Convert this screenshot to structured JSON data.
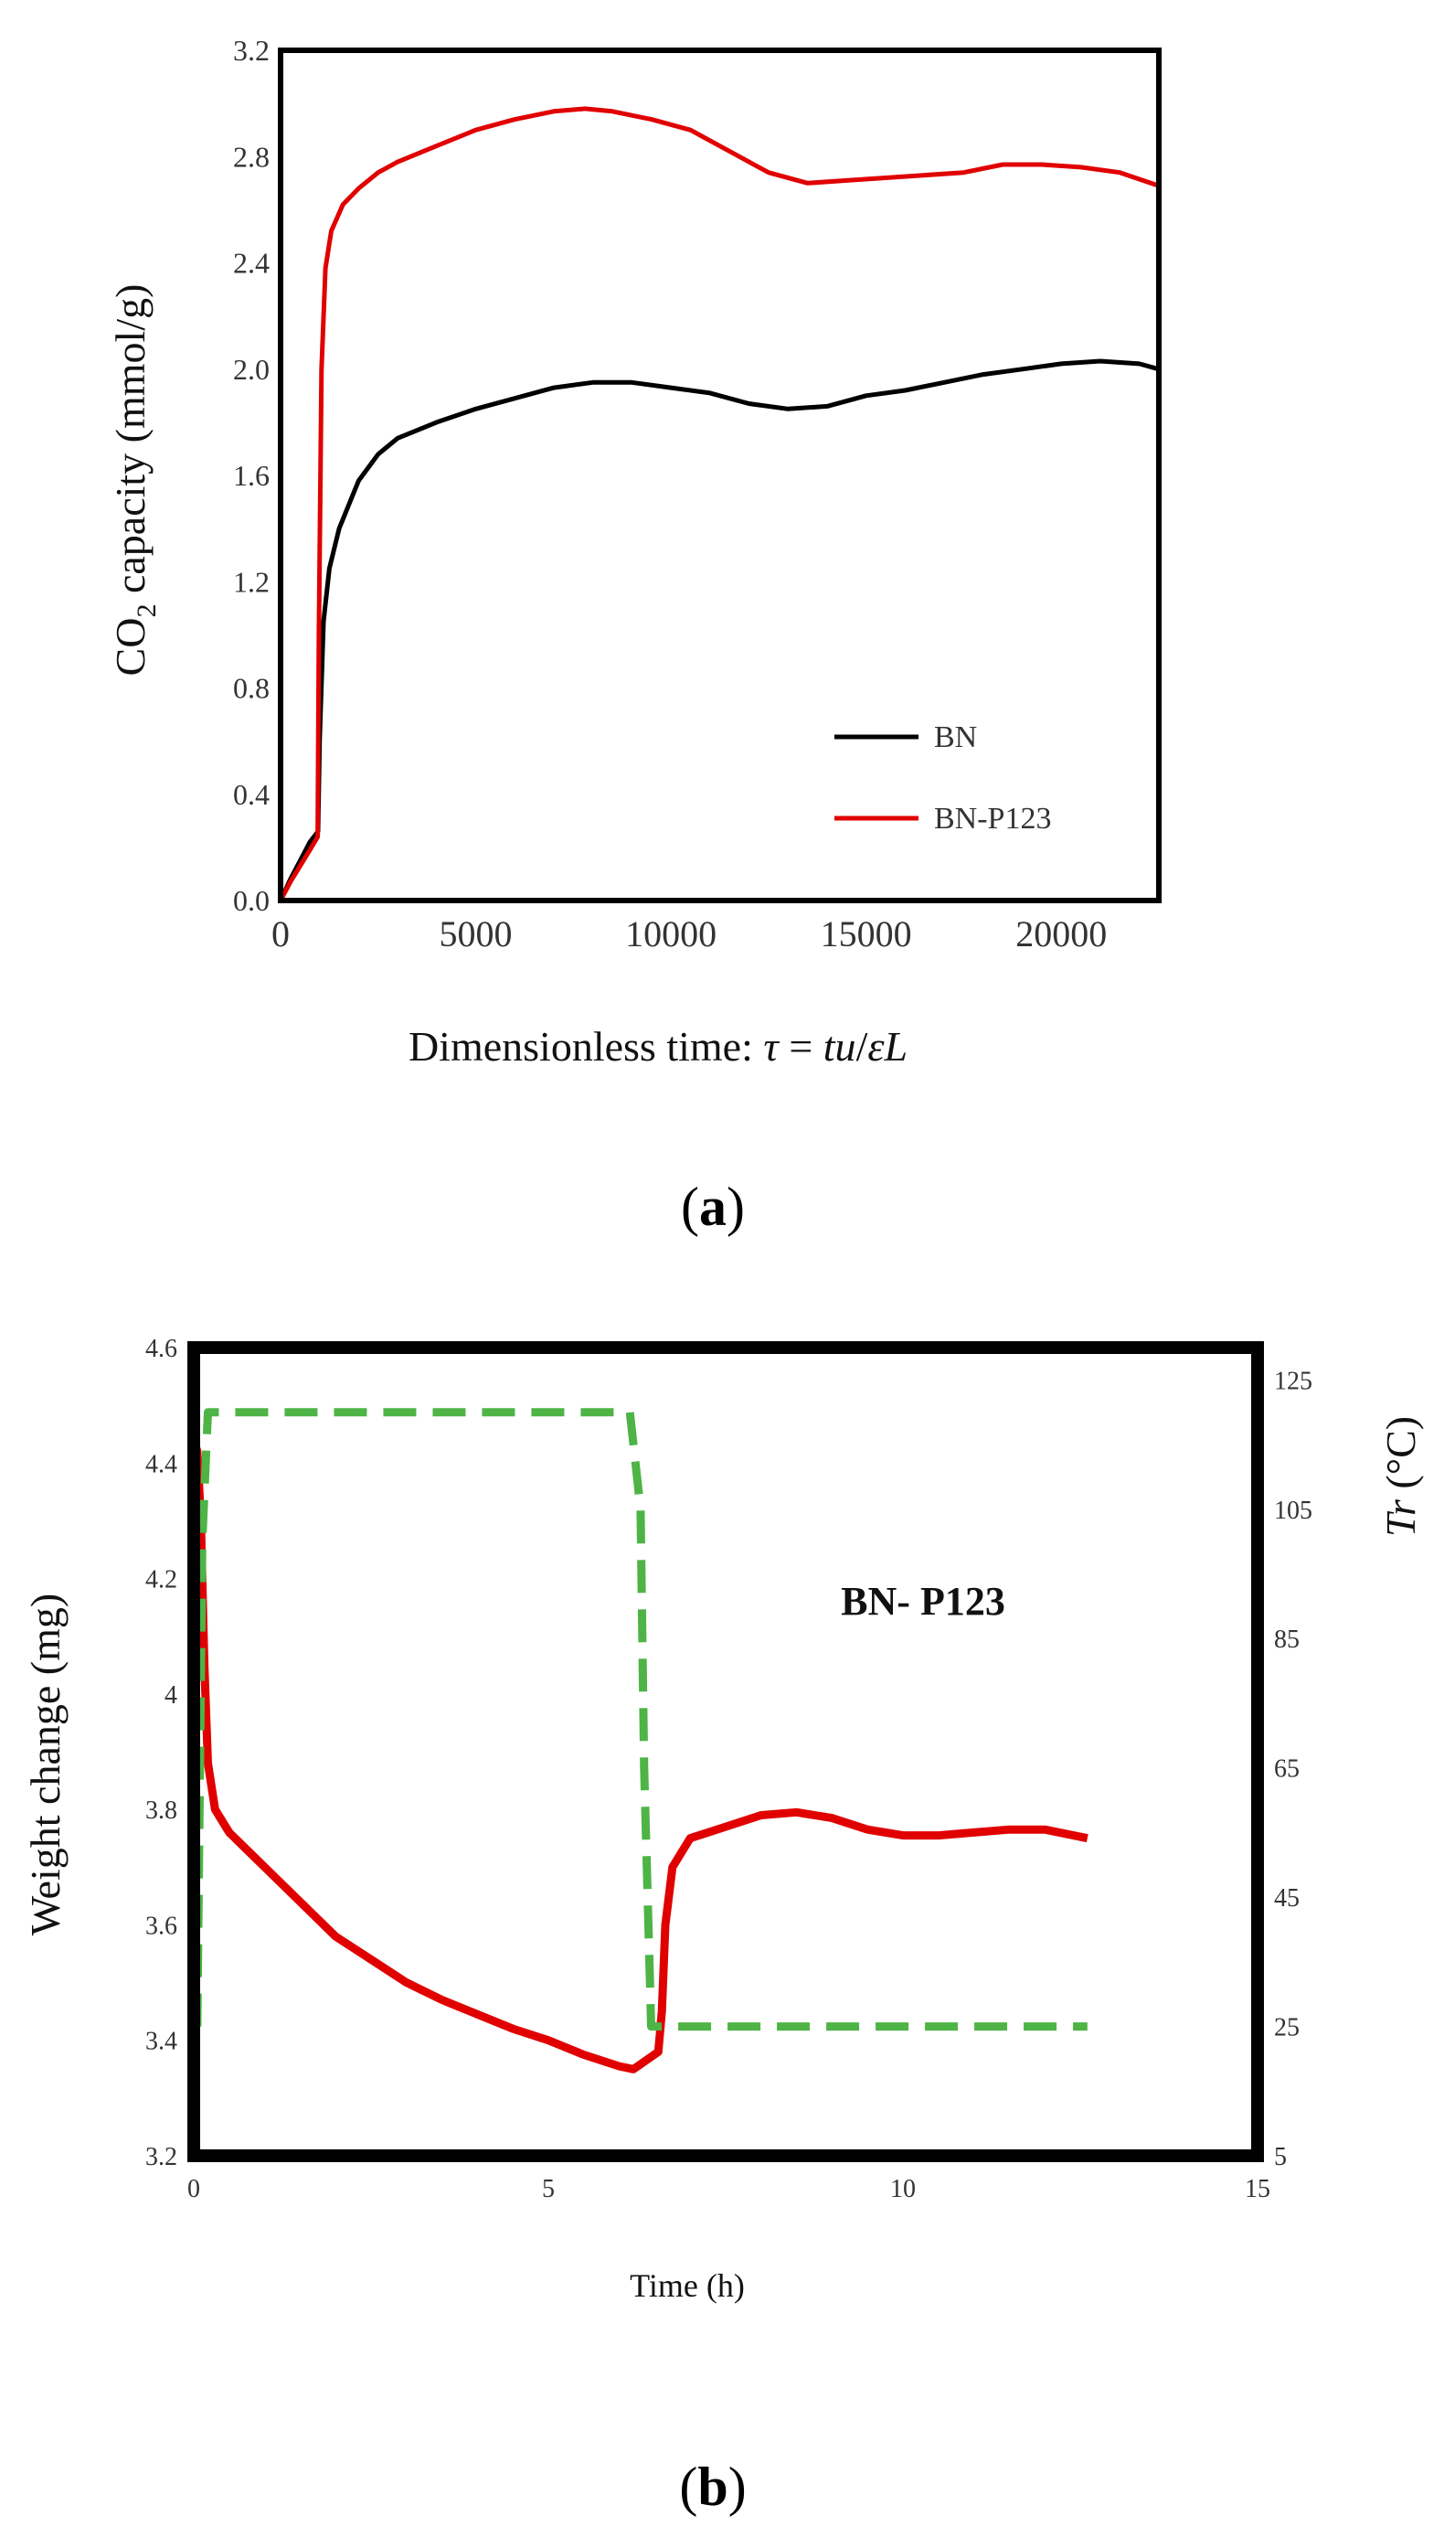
{
  "chart_data": [
    {
      "panel": "a",
      "type": "line",
      "panel_label": {
        "open": "(",
        "letter": "a",
        "close": ")"
      },
      "title": "",
      "xlabel": {
        "main": "Dimensionless time: ",
        "tau": "τ",
        "eq": " = ",
        "tu": "tu",
        "slash": "/",
        "epsL": "εL"
      },
      "ylabel": {
        "pre": "CO",
        "sub": "2",
        "post": " capacity (mmol/g)"
      },
      "xlim": [
        0,
        22500
      ],
      "ylim": [
        0.0,
        3.2
      ],
      "xticks": [
        "0",
        "5000",
        "10000",
        "15000",
        "20000"
      ],
      "yticks": [
        "0.0",
        "0.4",
        "0.8",
        "1.2",
        "1.6",
        "2.0",
        "2.4",
        "2.8",
        "3.2"
      ],
      "legend_position": "bottom-right",
      "series": [
        {
          "name": "BN",
          "color": "#000000",
          "points": [
            [
              0,
              0
            ],
            [
              250,
              0.08
            ],
            [
              500,
              0.15
            ],
            [
              750,
              0.22
            ],
            [
              960,
              0.26
            ],
            [
              1000,
              0.6
            ],
            [
              1100,
              1.05
            ],
            [
              1250,
              1.25
            ],
            [
              1500,
              1.4
            ],
            [
              2000,
              1.58
            ],
            [
              2500,
              1.68
            ],
            [
              3000,
              1.74
            ],
            [
              4000,
              1.8
            ],
            [
              5000,
              1.85
            ],
            [
              6000,
              1.89
            ],
            [
              7000,
              1.93
            ],
            [
              8000,
              1.95
            ],
            [
              9000,
              1.95
            ],
            [
              10000,
              1.93
            ],
            [
              11000,
              1.91
            ],
            [
              12000,
              1.87
            ],
            [
              13000,
              1.85
            ],
            [
              14000,
              1.86
            ],
            [
              15000,
              1.9
            ],
            [
              16000,
              1.92
            ],
            [
              17000,
              1.95
            ],
            [
              18000,
              1.98
            ],
            [
              19000,
              2.0
            ],
            [
              20000,
              2.02
            ],
            [
              21000,
              2.03
            ],
            [
              22000,
              2.02
            ],
            [
              22500,
              2.0
            ]
          ]
        },
        {
          "name": "BN-P123",
          "color": "#e00000",
          "points": [
            [
              0,
              0
            ],
            [
              250,
              0.07
            ],
            [
              500,
              0.13
            ],
            [
              750,
              0.19
            ],
            [
              950,
              0.24
            ],
            [
              980,
              1.0
            ],
            [
              1050,
              2.0
            ],
            [
              1150,
              2.38
            ],
            [
              1300,
              2.52
            ],
            [
              1600,
              2.62
            ],
            [
              2000,
              2.68
            ],
            [
              2500,
              2.74
            ],
            [
              3000,
              2.78
            ],
            [
              4000,
              2.84
            ],
            [
              5000,
              2.9
            ],
            [
              6000,
              2.94
            ],
            [
              7000,
              2.97
            ],
            [
              7800,
              2.98
            ],
            [
              8500,
              2.97
            ],
            [
              9500,
              2.94
            ],
            [
              10500,
              2.9
            ],
            [
              11500,
              2.82
            ],
            [
              12500,
              2.74
            ],
            [
              13500,
              2.7
            ],
            [
              14500,
              2.71
            ],
            [
              15500,
              2.72
            ],
            [
              16500,
              2.73
            ],
            [
              17500,
              2.74
            ],
            [
              18500,
              2.77
            ],
            [
              19500,
              2.77
            ],
            [
              20500,
              2.76
            ],
            [
              21500,
              2.74
            ],
            [
              22500,
              2.69
            ]
          ]
        }
      ]
    },
    {
      "panel": "b",
      "type": "line",
      "panel_label": {
        "open": "(",
        "letter": "b",
        "close": ")"
      },
      "title": "",
      "annotation": "BN- P123",
      "xlabel": "Time (h)",
      "ylabel": "Weight change (mg)",
      "y2label": {
        "var": "Tr",
        "unit": " (°C)"
      },
      "xlim": [
        0,
        15
      ],
      "ylim": [
        3.2,
        4.6
      ],
      "y2lim": [
        5,
        130
      ],
      "xticks": [
        "0",
        "5",
        "10",
        "15"
      ],
      "yticks": [
        "3.2",
        "3.4",
        "3.6",
        "3.8",
        "4",
        "4.2",
        "4.4",
        "4.6"
      ],
      "y2ticks": [
        "5",
        "25",
        "45",
        "65",
        "85",
        "105",
        "125"
      ],
      "series": [
        {
          "name": "Weight change",
          "axis": "left",
          "color": "#e00000",
          "points": [
            [
              0.0,
              4.44
            ],
            [
              0.05,
              4.42
            ],
            [
              0.1,
              4.3
            ],
            [
              0.15,
              4.05
            ],
            [
              0.2,
              3.88
            ],
            [
              0.3,
              3.8
            ],
            [
              0.5,
              3.76
            ],
            [
              1.0,
              3.7
            ],
            [
              1.5,
              3.64
            ],
            [
              2.0,
              3.58
            ],
            [
              2.5,
              3.54
            ],
            [
              3.0,
              3.5
            ],
            [
              3.5,
              3.47
            ],
            [
              4.0,
              3.445
            ],
            [
              4.5,
              3.42
            ],
            [
              5.0,
              3.4
            ],
            [
              5.5,
              3.375
            ],
            [
              6.0,
              3.355
            ],
            [
              6.2,
              3.35
            ],
            [
              6.55,
              3.38
            ],
            [
              6.6,
              3.45
            ],
            [
              6.65,
              3.6
            ],
            [
              6.75,
              3.7
            ],
            [
              7.0,
              3.75
            ],
            [
              7.5,
              3.77
            ],
            [
              8.0,
              3.79
            ],
            [
              8.5,
              3.795
            ],
            [
              9.0,
              3.785
            ],
            [
              9.5,
              3.765
            ],
            [
              10.0,
              3.755
            ],
            [
              10.5,
              3.755
            ],
            [
              11.0,
              3.76
            ],
            [
              11.5,
              3.765
            ],
            [
              12.0,
              3.765
            ],
            [
              12.6,
              3.75
            ]
          ]
        },
        {
          "name": "Tr",
          "axis": "right",
          "color": "#4db445",
          "points": [
            [
              0.05,
              25
            ],
            [
              0.12,
              100
            ],
            [
              0.2,
              120
            ],
            [
              6.15,
              120
            ],
            [
              6.3,
              105
            ],
            [
              6.35,
              65
            ],
            [
              6.45,
              25
            ],
            [
              12.6,
              25
            ]
          ]
        }
      ]
    }
  ]
}
